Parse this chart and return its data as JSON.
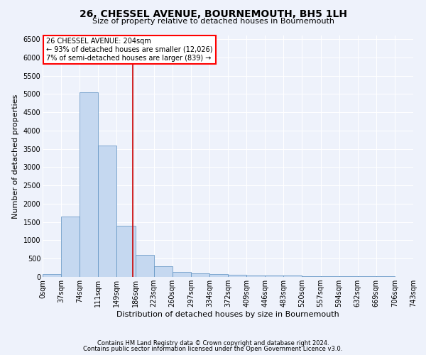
{
  "title": "26, CHESSEL AVENUE, BOURNEMOUTH, BH5 1LH",
  "subtitle": "Size of property relative to detached houses in Bournemouth",
  "xlabel": "Distribution of detached houses by size in Bournemouth",
  "ylabel": "Number of detached properties",
  "footnote1": "Contains HM Land Registry data © Crown copyright and database right 2024.",
  "footnote2": "Contains public sector information licensed under the Open Government Licence v3.0.",
  "bar_values": [
    75,
    1650,
    5050,
    3600,
    1400,
    610,
    290,
    140,
    90,
    75,
    50,
    40,
    35,
    30,
    25,
    20,
    15,
    12,
    10,
    8
  ],
  "bar_color": "#c5d8f0",
  "bar_edge_color": "#5a8fc0",
  "x_labels": [
    "0sqm",
    "37sqm",
    "74sqm",
    "111sqm",
    "149sqm",
    "186sqm",
    "223sqm",
    "260sqm",
    "297sqm",
    "334sqm",
    "372sqm",
    "409sqm",
    "446sqm",
    "483sqm",
    "520sqm",
    "557sqm",
    "594sqm",
    "632sqm",
    "669sqm",
    "706sqm",
    "743sqm"
  ],
  "ylim": [
    0,
    6600
  ],
  "yticks": [
    0,
    500,
    1000,
    1500,
    2000,
    2500,
    3000,
    3500,
    4000,
    4500,
    5000,
    5500,
    6000,
    6500
  ],
  "annotation_line1": "26 CHESSEL AVENUE: 204sqm",
  "annotation_line2": "← 93% of detached houses are smaller (12,026)",
  "annotation_line3": "7% of semi-detached houses are larger (839) →",
  "vline_x": 4.87,
  "vline_color": "#cc0000",
  "background_color": "#eef2fb",
  "plot_bg_color": "#eef2fb",
  "grid_color": "#ffffff",
  "title_fontsize": 10,
  "subtitle_fontsize": 8,
  "ylabel_fontsize": 8,
  "xlabel_fontsize": 8,
  "tick_fontsize": 7,
  "annot_fontsize": 7,
  "footnote_fontsize": 6
}
